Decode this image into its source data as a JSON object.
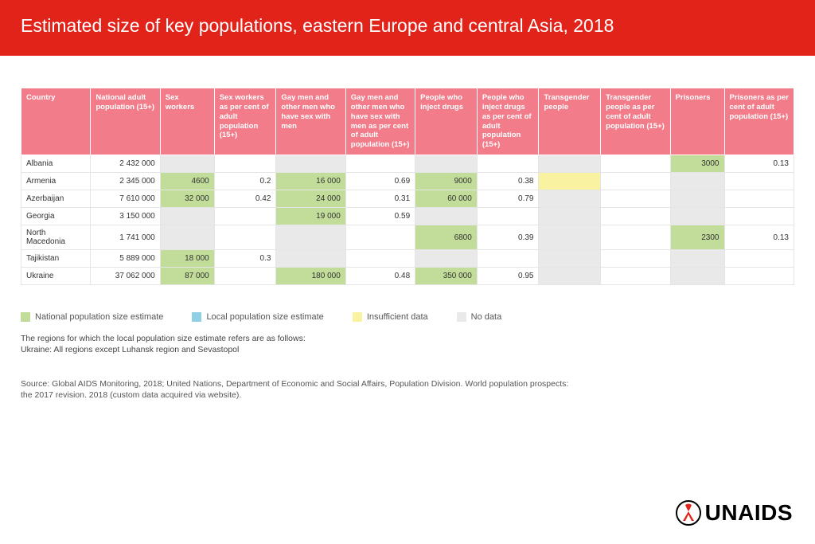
{
  "header": {
    "title": "Estimated size of key populations, eastern Europe and central Asia, 2018"
  },
  "colors": {
    "header_bg": "#e2231a",
    "th_bg": "#f27c8a",
    "national": "#c2dd9a",
    "local": "#8fd0e5",
    "insufficient": "#f9f2a0",
    "nodata": "#e9e9e9"
  },
  "table": {
    "columns": [
      "Country",
      "National adult population (15+)",
      "Sex workers",
      "Sex workers as per cent of adult population (15+)",
      "Gay men and other men who  have sex with men",
      "Gay men and other men who have sex with men as per cent of adult population (15+)",
      "People who inject drugs",
      "People who inject drugs as  per cent of adult population (15+)",
      "Transgender people",
      "Transgender people as per cent of adult population (15+)",
      "Prisoners",
      "Prisoners as per cent of adult population (15+)"
    ],
    "col_widths": [
      "9%",
      "9%",
      "7%",
      "8%",
      "9%",
      "9%",
      "8%",
      "8%",
      "8%",
      "9%",
      "7%",
      "9%"
    ],
    "rows": [
      {
        "country": "Albania",
        "cells": [
          {
            "v": "2 432 000"
          },
          {
            "v": "",
            "c": "nodata"
          },
          {
            "v": ""
          },
          {
            "v": "",
            "c": "nodata"
          },
          {
            "v": ""
          },
          {
            "v": "",
            "c": "nodata"
          },
          {
            "v": ""
          },
          {
            "v": "",
            "c": "nodata"
          },
          {
            "v": ""
          },
          {
            "v": "3000",
            "c": "national"
          },
          {
            "v": "0.13"
          }
        ]
      },
      {
        "country": "Armenia",
        "cells": [
          {
            "v": "2 345 000"
          },
          {
            "v": "4600",
            "c": "national"
          },
          {
            "v": "0.2"
          },
          {
            "v": "16 000",
            "c": "national"
          },
          {
            "v": "0.69"
          },
          {
            "v": "9000",
            "c": "national"
          },
          {
            "v": "0.38"
          },
          {
            "v": "",
            "c": "insufficient"
          },
          {
            "v": ""
          },
          {
            "v": "",
            "c": "nodata"
          },
          {
            "v": ""
          }
        ]
      },
      {
        "country": "Azerbaijan",
        "cells": [
          {
            "v": "7 610 000"
          },
          {
            "v": "32 000",
            "c": "national"
          },
          {
            "v": "0.42"
          },
          {
            "v": "24 000",
            "c": "national"
          },
          {
            "v": "0.31"
          },
          {
            "v": "60 000",
            "c": "national"
          },
          {
            "v": "0.79"
          },
          {
            "v": "",
            "c": "nodata"
          },
          {
            "v": ""
          },
          {
            "v": "",
            "c": "nodata"
          },
          {
            "v": ""
          }
        ]
      },
      {
        "country": "Georgia",
        "cells": [
          {
            "v": "3 150 000"
          },
          {
            "v": "",
            "c": "nodata"
          },
          {
            "v": ""
          },
          {
            "v": "19 000",
            "c": "national"
          },
          {
            "v": "0.59"
          },
          {
            "v": "",
            "c": "nodata"
          },
          {
            "v": ""
          },
          {
            "v": "",
            "c": "nodata"
          },
          {
            "v": ""
          },
          {
            "v": "",
            "c": "nodata"
          },
          {
            "v": ""
          }
        ]
      },
      {
        "country": "North Macedonia",
        "cells": [
          {
            "v": "1 741 000"
          },
          {
            "v": "",
            "c": "nodata"
          },
          {
            "v": ""
          },
          {
            "v": "",
            "c": "nodata"
          },
          {
            "v": ""
          },
          {
            "v": "6800",
            "c": "national"
          },
          {
            "v": "0.39"
          },
          {
            "v": "",
            "c": "nodata"
          },
          {
            "v": ""
          },
          {
            "v": "2300",
            "c": "national"
          },
          {
            "v": "0.13"
          }
        ]
      },
      {
        "country": "Tajikistan",
        "cells": [
          {
            "v": "5 889 000"
          },
          {
            "v": "18 000",
            "c": "national"
          },
          {
            "v": "0.3"
          },
          {
            "v": "",
            "c": "nodata"
          },
          {
            "v": ""
          },
          {
            "v": "",
            "c": "nodata"
          },
          {
            "v": ""
          },
          {
            "v": "",
            "c": "nodata"
          },
          {
            "v": ""
          },
          {
            "v": "",
            "c": "nodata"
          },
          {
            "v": ""
          }
        ]
      },
      {
        "country": "Ukraine",
        "cells": [
          {
            "v": "37 062 000"
          },
          {
            "v": "87 000",
            "c": "national"
          },
          {
            "v": ""
          },
          {
            "v": "180 000",
            "c": "national"
          },
          {
            "v": "0.48"
          },
          {
            "v": "350 000",
            "c": "national"
          },
          {
            "v": "0.95"
          },
          {
            "v": "",
            "c": "nodata"
          },
          {
            "v": ""
          },
          {
            "v": "",
            "c": "nodata"
          },
          {
            "v": ""
          }
        ]
      }
    ]
  },
  "legend": {
    "items": [
      {
        "label": "National population size estimate",
        "color": "national"
      },
      {
        "label": "Local population size estimate",
        "color": "local"
      },
      {
        "label": "Insufficient data",
        "color": "insufficient"
      },
      {
        "label": "No data",
        "color": "nodata"
      }
    ]
  },
  "note": {
    "line1": "The regions for which the local population size estimate refers are as follows:",
    "line2": "Ukraine: All regions except Luhansk region and Sevastopol"
  },
  "source": {
    "line1": "Source: Global AIDS Monitoring, 2018; United Nations, Department of Economic and Social Affairs, Population Division. World population prospects:",
    "line2": "the 2017 revision. 2018 (custom data acquired via website)."
  },
  "logo": {
    "text": "UNAIDS"
  }
}
